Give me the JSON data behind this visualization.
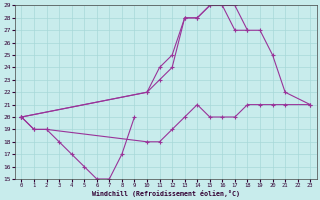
{
  "xlabel": "Windchill (Refroidissement éolien,°C)",
  "xlim": [
    -0.5,
    23.5
  ],
  "ylim": [
    15,
    29
  ],
  "xticks": [
    0,
    1,
    2,
    3,
    4,
    5,
    6,
    7,
    8,
    9,
    10,
    11,
    12,
    13,
    14,
    15,
    16,
    17,
    18,
    19,
    20,
    21,
    22,
    23
  ],
  "yticks": [
    15,
    16,
    17,
    18,
    19,
    20,
    21,
    22,
    23,
    24,
    25,
    26,
    27,
    28,
    29
  ],
  "bg_color": "#c8ecec",
  "grid_color": "#a8d8d8",
  "line_color": "#993399",
  "lines": [
    {
      "x": [
        0,
        1,
        2,
        3,
        4,
        5,
        6,
        7,
        8,
        9
      ],
      "y": [
        20,
        19,
        19,
        18,
        17,
        16,
        15,
        15,
        17,
        20
      ]
    },
    {
      "x": [
        0,
        1,
        2,
        10,
        11,
        12,
        13,
        14,
        15,
        16,
        17,
        18,
        19,
        20,
        21,
        23
      ],
      "y": [
        20,
        19,
        19,
        18,
        18,
        19,
        20,
        21,
        20,
        20,
        20,
        21,
        21,
        21,
        21,
        21
      ]
    },
    {
      "x": [
        0,
        10,
        11,
        12,
        13,
        14,
        15,
        16,
        17,
        18
      ],
      "y": [
        20,
        22,
        24,
        25,
        28,
        28,
        29,
        29,
        29,
        27
      ]
    },
    {
      "x": [
        0,
        10,
        11,
        12,
        13,
        14,
        15,
        16,
        17,
        18,
        19,
        20,
        21,
        23
      ],
      "y": [
        20,
        22,
        23,
        24,
        28,
        28,
        29,
        29,
        27,
        27,
        27,
        25,
        22,
        21
      ]
    }
  ]
}
